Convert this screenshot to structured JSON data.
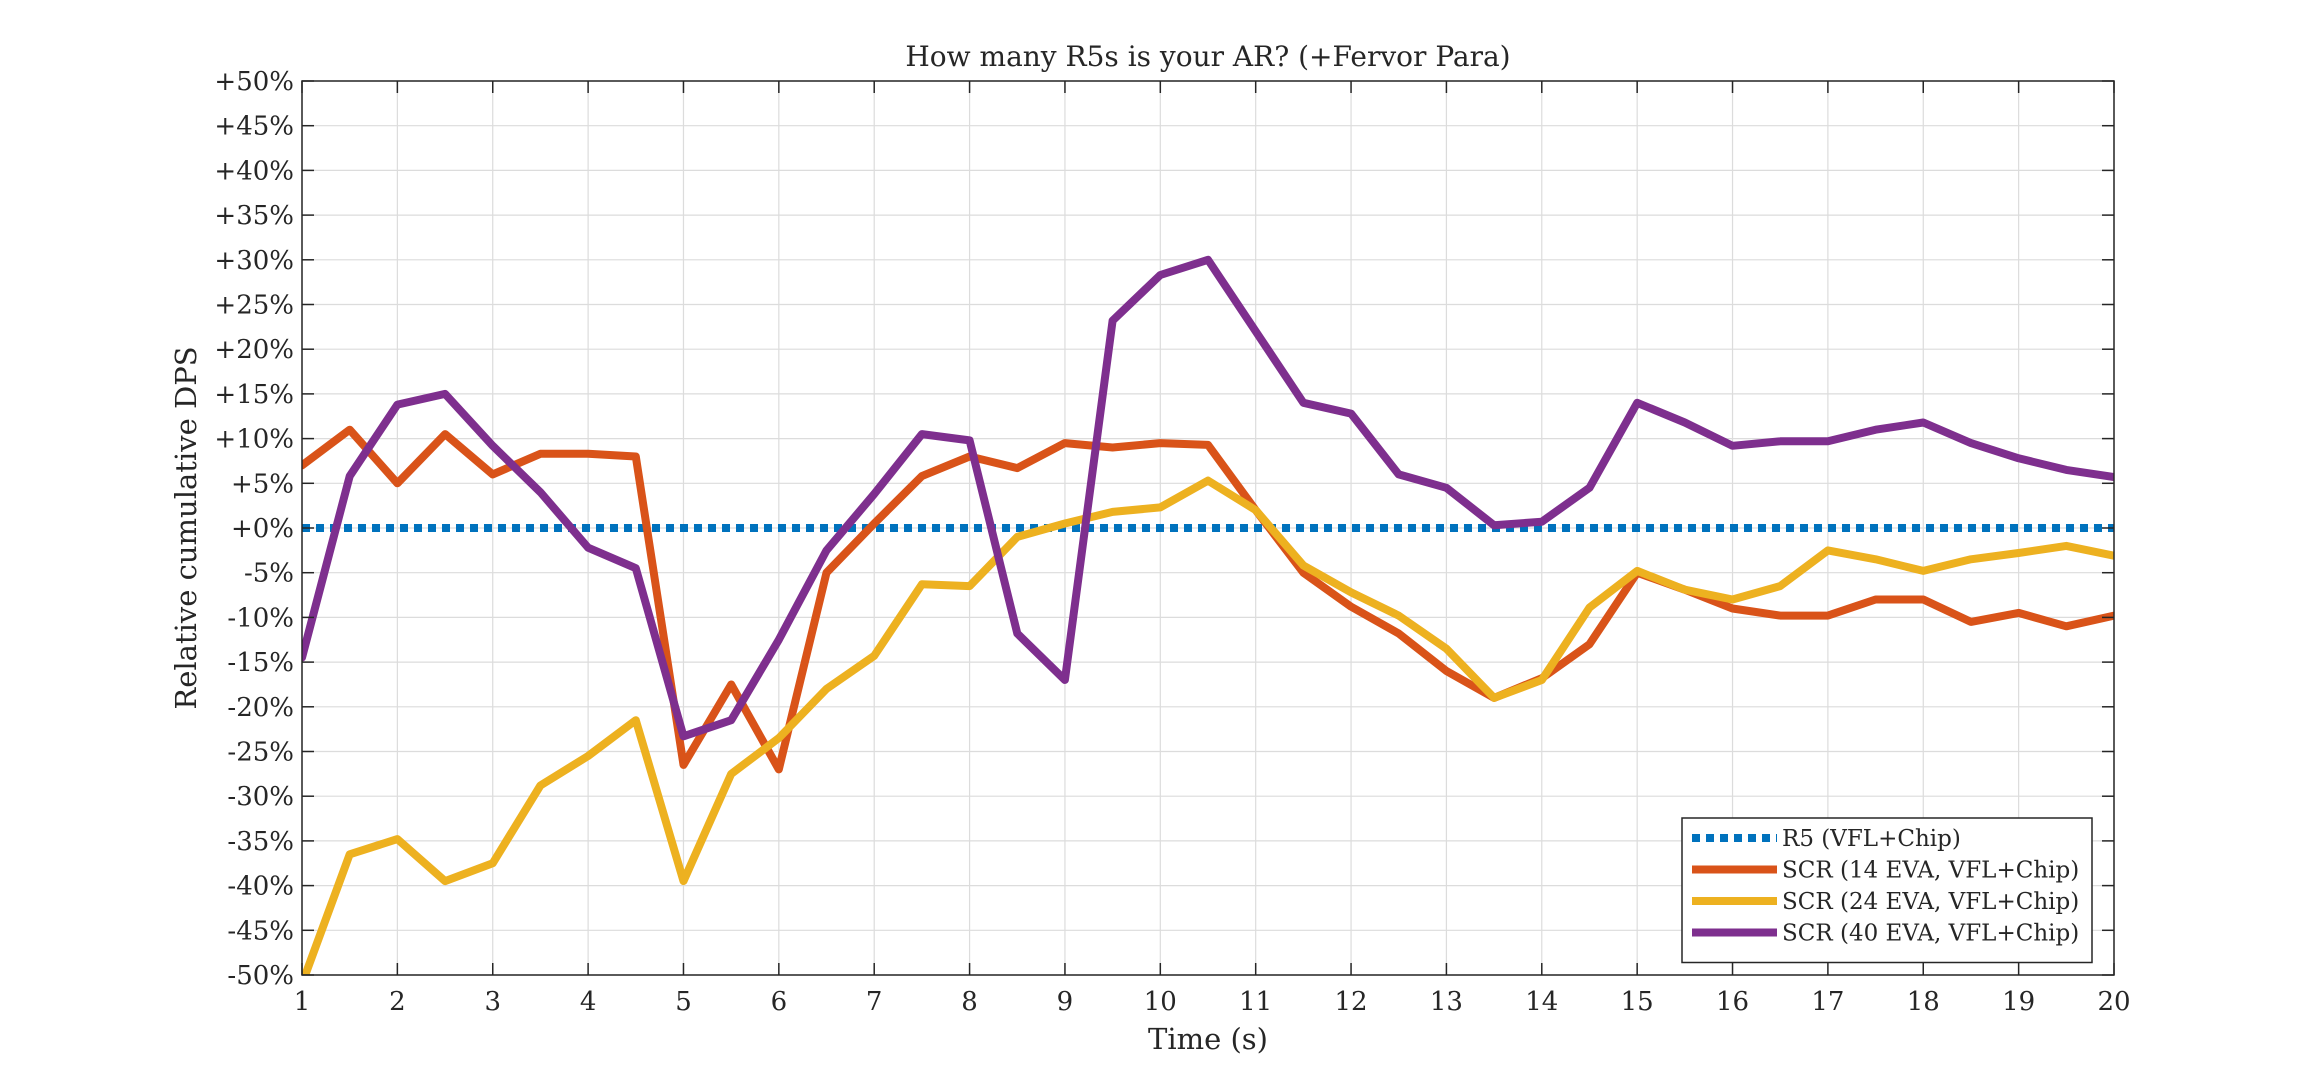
{
  "chart_data": {
    "type": "line",
    "title": "How many R5s is your AR? (+Fervor Para)",
    "xlabel": "Time (s)",
    "ylabel": "Relative cumulative DPS",
    "xlim": [
      1,
      20
    ],
    "ylim": [
      -50,
      50
    ],
    "xticks": [
      1,
      2,
      3,
      4,
      5,
      6,
      7,
      8,
      9,
      10,
      11,
      12,
      13,
      14,
      15,
      16,
      17,
      18,
      19,
      20
    ],
    "yticks": [
      -50,
      -45,
      -40,
      -35,
      -30,
      -25,
      -20,
      -15,
      -10,
      -5,
      0,
      5,
      10,
      15,
      20,
      25,
      30,
      35,
      40,
      45,
      50
    ],
    "ytick_labels": [
      "-50%",
      "-45%",
      "-40%",
      "-35%",
      "-30%",
      "-25%",
      "-20%",
      "-15%",
      "-10%",
      "-5%",
      "+0%",
      "+5%",
      "+10%",
      "+15%",
      "+20%",
      "+25%",
      "+30%",
      "+35%",
      "+40%",
      "+45%",
      "+50%"
    ],
    "grid": true,
    "legend_position": "bottom-right",
    "x": [
      1,
      1.5,
      2,
      2.5,
      3,
      3.5,
      4,
      4.5,
      5,
      5.5,
      6,
      6.5,
      7,
      7.5,
      8,
      8.5,
      9,
      9.5,
      10,
      10.5,
      11,
      11.5,
      12,
      12.5,
      13,
      13.5,
      14,
      14.5,
      15,
      15.5,
      16,
      16.5,
      17,
      17.5,
      18,
      18.5,
      19,
      19.5,
      20
    ],
    "series": [
      {
        "name": "R5 (VFL+Chip)",
        "color": "#0072BD",
        "style": "dotted",
        "values": [
          0,
          0,
          0,
          0,
          0,
          0,
          0,
          0,
          0,
          0,
          0,
          0,
          0,
          0,
          0,
          0,
          0,
          0,
          0,
          0,
          0,
          0,
          0,
          0,
          0,
          0,
          0,
          0,
          0,
          0,
          0,
          0,
          0,
          0,
          0,
          0,
          0,
          0,
          0
        ]
      },
      {
        "name": "SCR (14 EVA, VFL+Chip)",
        "color": "#D95319",
        "style": "solid",
        "values": [
          7,
          11,
          5,
          10.5,
          6,
          8.3,
          8.3,
          8,
          -26.5,
          -17.5,
          -27,
          -5,
          0.5,
          5.8,
          8,
          6.7,
          9.5,
          9,
          9.5,
          9.3,
          2,
          -5,
          -8.8,
          -11.8,
          -16,
          -19,
          -16.8,
          -13,
          -5,
          -6.9,
          -9,
          -9.8,
          -9.8,
          -8,
          -8,
          -10.5,
          -9.5,
          -11,
          -9.8
        ]
      },
      {
        "name": "SCR (24 EVA, VFL+Chip)",
        "color": "#EDB120",
        "style": "solid",
        "values": [
          -51,
          -36.5,
          -34.8,
          -39.5,
          -37.5,
          -28.8,
          -25.5,
          -21.5,
          -39.5,
          -27.5,
          -23.5,
          -18,
          -14.3,
          -6.3,
          -6.5,
          -1,
          0.5,
          1.8,
          2.3,
          5.3,
          2,
          -4.2,
          -7.2,
          -9.8,
          -13.5,
          -19,
          -17,
          -8.9,
          -4.8,
          -6.9,
          -8,
          -6.5,
          -2.5,
          -3.5,
          -4.8,
          -3.5,
          -2.8,
          -2,
          -3.1
        ]
      },
      {
        "name": "SCR (40 EVA, VFL+Chip)",
        "color": "#7E2F8E",
        "style": "solid",
        "values": [
          -14.5,
          5.8,
          13.8,
          15,
          9.2,
          4,
          -2.2,
          -4.5,
          -23.3,
          -21.5,
          -12.5,
          -2.5,
          3.8,
          10.5,
          9.8,
          -11.8,
          -17,
          23.2,
          28.3,
          30,
          22,
          14,
          12.8,
          6,
          4.5,
          0.3,
          0.7,
          4.5,
          14,
          11.8,
          9.2,
          9.7,
          9.7,
          11,
          11.8,
          9.5,
          7.8,
          6.5,
          5.7
        ]
      }
    ]
  }
}
